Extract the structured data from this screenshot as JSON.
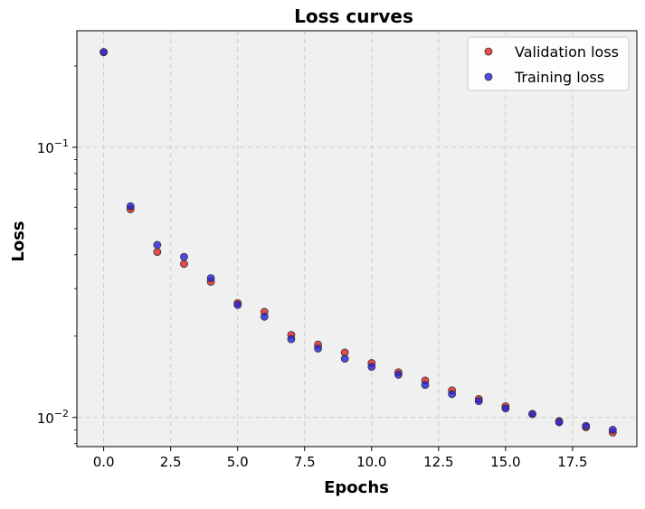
{
  "chart_data": {
    "type": "scatter",
    "title": "Loss curves",
    "xlabel": "Epochs",
    "ylabel": "Loss",
    "yscale": "log",
    "xlim": [
      -1.0,
      19.9
    ],
    "ylim": [
      0.0078,
      0.27
    ],
    "grid": true,
    "legend_position": "top-right",
    "x_ticks": [
      0.0,
      2.5,
      5.0,
      7.5,
      10.0,
      12.5,
      15.0,
      17.5
    ],
    "x_tick_labels": [
      "0.0",
      "2.5",
      "5.0",
      "7.5",
      "10.0",
      "12.5",
      "15.0",
      "17.5"
    ],
    "y_major_ticks": [
      0.1,
      0.01
    ],
    "y_tick_labels": [
      {
        "base": "10",
        "exp": "−1"
      },
      {
        "base": "10",
        "exp": "−2"
      }
    ],
    "x": [
      0,
      1,
      2,
      3,
      4,
      5,
      6,
      7,
      8,
      9,
      10,
      11,
      12,
      13,
      14,
      15,
      16,
      17,
      18,
      19
    ],
    "series": [
      {
        "name": "Validation loss",
        "color": "#e52020",
        "values": [
          0.225,
          0.059,
          0.041,
          0.037,
          0.0318,
          0.0265,
          0.0246,
          0.0202,
          0.0186,
          0.0174,
          0.0159,
          0.0147,
          0.0137,
          0.0126,
          0.0117,
          0.011,
          0.0103,
          0.0097,
          0.0092,
          0.0088
        ]
      },
      {
        "name": "Training loss",
        "color": "#2020e0",
        "values": [
          0.225,
          0.0605,
          0.0435,
          0.0393,
          0.0328,
          0.0261,
          0.0236,
          0.0195,
          0.018,
          0.0165,
          0.0154,
          0.0144,
          0.0132,
          0.0122,
          0.0115,
          0.0108,
          0.0103,
          0.0096,
          0.0093,
          0.009
        ]
      }
    ],
    "colors": {
      "plot_background": "#f0f0f0",
      "grid": "#cccccc",
      "marker_edge": "#333333"
    }
  }
}
